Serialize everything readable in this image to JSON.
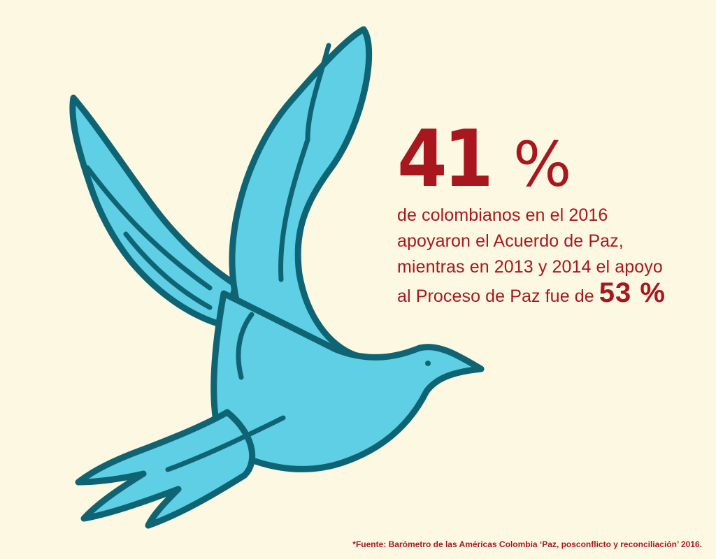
{
  "headline": {
    "number": "41",
    "percent_sign": "%"
  },
  "body_lines": [
    "de colombianos en el 2016",
    "apoyaron el Acuerdo de Paz,",
    "mientras en 2013 y 2014 el apoyo",
    "al Proceso de Paz fue de"
  ],
  "inline_stat": "53 %",
  "source_note": "*Fuente: Barómetro de las Américas Colombia ‘Paz, posconflicto y reconciliación’ 2016.",
  "colors": {
    "background": "#fdf8e2",
    "dove_fill": "#5ecfe4",
    "dove_outline": "#0f6474",
    "accent_red": "#a8171e"
  },
  "icons": [
    "dove-illustration"
  ]
}
